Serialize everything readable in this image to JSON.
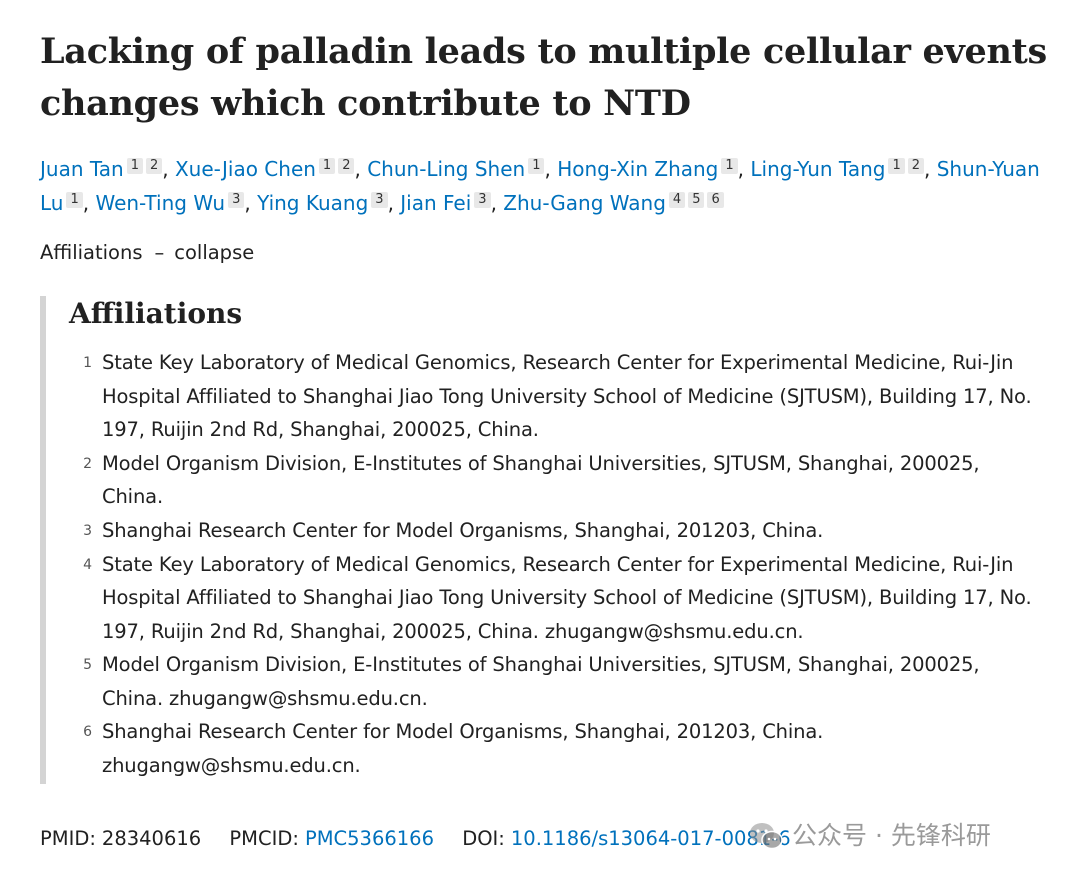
{
  "article": {
    "title": "Lacking of palladin leads to multiple cellular events changes which contribute to NTD"
  },
  "authors": [
    {
      "name": "Juan Tan",
      "affs": [
        "1",
        "2"
      ]
    },
    {
      "name": "Xue-Jiao Chen",
      "affs": [
        "1",
        "2"
      ]
    },
    {
      "name": "Chun-Ling Shen",
      "affs": [
        "1"
      ]
    },
    {
      "name": "Hong-Xin Zhang",
      "affs": [
        "1"
      ]
    },
    {
      "name": "Ling-Yun Tang",
      "affs": [
        "1",
        "2"
      ]
    },
    {
      "name": "Shun-Yuan Lu",
      "affs": [
        "1"
      ]
    },
    {
      "name": "Wen-Ting Wu",
      "affs": [
        "3"
      ]
    },
    {
      "name": "Ying Kuang",
      "affs": [
        "3"
      ]
    },
    {
      "name": "Jian Fei",
      "affs": [
        "3"
      ]
    },
    {
      "name": "Zhu-Gang Wang",
      "affs": [
        "4",
        "5",
        "6"
      ]
    }
  ],
  "affiliations_toggle": {
    "label": "Affiliations",
    "dash": "–",
    "action": "collapse"
  },
  "affiliations": {
    "heading": "Affiliations",
    "items": [
      {
        "num": "1",
        "text": "State Key Laboratory of Medical Genomics, Research Center for Experimental Medicine, Rui-Jin Hospital Affiliated to Shanghai Jiao Tong University School of Medicine (SJTUSM), Building 17, No. 197, Ruijin 2nd Rd, Shanghai, 200025, China."
      },
      {
        "num": "2",
        "text": "Model Organism Division, E-Institutes of Shanghai Universities, SJTUSM, Shanghai, 200025, China."
      },
      {
        "num": "3",
        "text": "Shanghai Research Center for Model Organisms, Shanghai, 201203, China."
      },
      {
        "num": "4",
        "text": "State Key Laboratory of Medical Genomics, Research Center for Experimental Medicine, Rui-Jin Hospital Affiliated to Shanghai Jiao Tong University School of Medicine (SJTUSM), Building 17, No. 197, Ruijin 2nd Rd, Shanghai, 200025, China. zhugangw@shsmu.edu.cn."
      },
      {
        "num": "5",
        "text": "Model Organism Division, E-Institutes of Shanghai Universities, SJTUSM, Shanghai, 200025, China. zhugangw@shsmu.edu.cn."
      },
      {
        "num": "6",
        "text": "Shanghai Research Center for Model Organisms, Shanghai, 201203, China. zhugangw@shsmu.edu.cn."
      }
    ]
  },
  "identifiers": {
    "pmid_label": "PMID:",
    "pmid": "28340616",
    "pmcid_label": "PMCID:",
    "pmcid": "PMC5366166",
    "doi_label": "DOI:",
    "doi": "10.1186/s13064-017-0081-6"
  },
  "watermark": {
    "text": "公众号 · 先锋科研",
    "icon": "wechat-icon"
  },
  "colors": {
    "link": "#0071bc",
    "text": "#212121",
    "badge_bg": "#e8e8e8",
    "panel_border": "#d4d4d4"
  }
}
